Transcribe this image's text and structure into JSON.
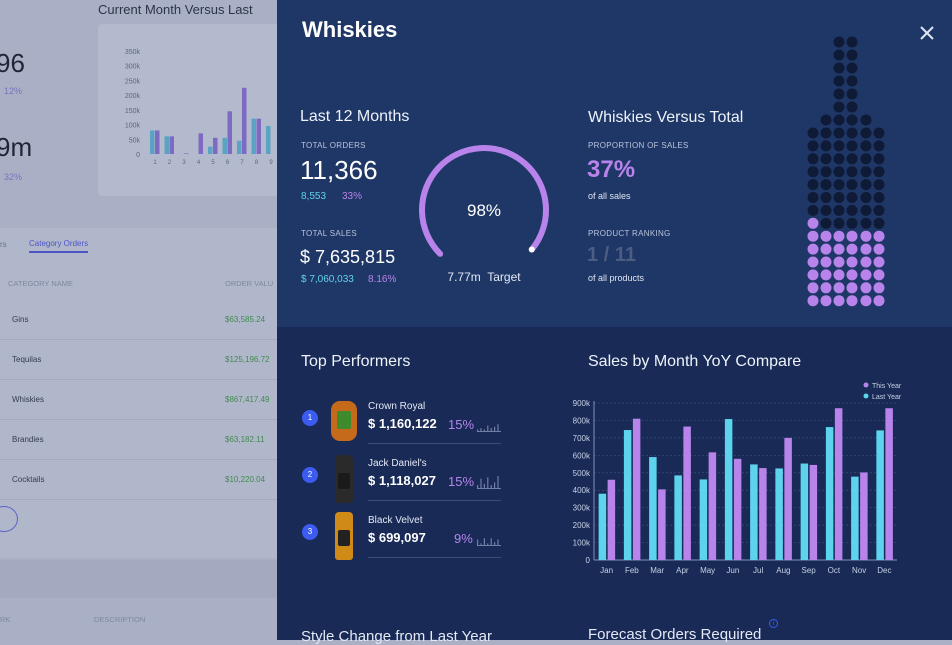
{
  "background": {
    "chart_title": "Current Month Versus Last",
    "kpi1_value": "96",
    "kpi1_change": "12%",
    "kpi2_value": "9m",
    "kpi2_change": "32%",
    "mini_chart": {
      "type": "bar",
      "categories": [
        "1",
        "2",
        "3",
        "4",
        "5",
        "6",
        "7",
        "8",
        "9"
      ],
      "y_ticks": [
        "350k",
        "300k",
        "250k",
        "200k",
        "150k",
        "100k",
        "50k",
        "0"
      ],
      "ymax": 350,
      "series": [
        {
          "values": [
            80,
            60,
            0,
            0,
            25,
            55,
            45,
            120,
            95
          ]
        },
        {
          "values": [
            80,
            60,
            2,
            70,
            55,
            145,
            225,
            120,
            null
          ]
        }
      ]
    },
    "tabs": [
      "rs",
      "Category Orders"
    ],
    "table": {
      "headers": [
        "CATEGORY NAME",
        "ORDER VALU"
      ],
      "rows": [
        [
          "Gins",
          "$63,585.24"
        ],
        [
          "Tequilas",
          "$125,196.72"
        ],
        [
          "Whiskies",
          "$867,417.49"
        ],
        [
          "Brandies",
          "$63,182.11"
        ],
        [
          "Cocktails",
          "$10,220.04"
        ]
      ]
    },
    "footer_headers": [
      "RK",
      "DESCRIPTION"
    ]
  },
  "panel": {
    "title": "Whiskies",
    "close_icon": "close-x",
    "last12": {
      "heading": "Last 12 Months",
      "orders_label": "Total Orders",
      "orders_value": "11,366",
      "orders_prev": "8,553",
      "orders_change": "33%",
      "sales_label": "Total Sales",
      "sales_value": "$ 7,635,815",
      "sales_prev": "$ 7,060,033",
      "sales_change": "8.16%",
      "gauge_value": "98%",
      "gauge_fraction": 0.98,
      "gauge_target": "7.77m  Target"
    },
    "versus": {
      "heading": "Whiskies Versus Total",
      "prop_label": "Proportion of Sales",
      "prop_value": "37%",
      "prop_sub": "of all sales",
      "rank_label": "Product Ranking",
      "rank_value": "1 / 11",
      "rank_sub": "of all products",
      "bottle_filled_percent": 37
    },
    "top_performers": {
      "heading": "Top Performers",
      "items": [
        {
          "rank": "1",
          "name": "Crown Royal",
          "value": "$ 1,160,122",
          "pct": "15%",
          "spark": [
            2,
            3,
            2,
            5,
            3,
            4,
            6
          ]
        },
        {
          "rank": "2",
          "name": "Jack Daniel's",
          "value": "$ 1,118,027",
          "pct": "15%",
          "spark": [
            3,
            8,
            4,
            9,
            3,
            5,
            10
          ]
        },
        {
          "rank": "3",
          "name": "Black Velvet",
          "value": "$ 699,097",
          "pct": "9%",
          "spark": [
            5,
            2,
            6,
            2,
            6,
            3,
            5
          ]
        }
      ]
    },
    "colors": {
      "this_year": "#b884ec",
      "last_year": "#5ed3ee",
      "panel_top": "#1f3766",
      "panel_bottom": "#182a55"
    },
    "chart_data": {
      "type": "bar",
      "title": "Sales by Month YoY Compare",
      "categories": [
        "Jan",
        "Feb",
        "Mar",
        "Apr",
        "May",
        "Jun",
        "Jul",
        "Aug",
        "Sep",
        "Oct",
        "Nov",
        "Dec"
      ],
      "y_ticks": [
        "0",
        "100k",
        "200k",
        "300k",
        "400k",
        "500k",
        "600k",
        "700k",
        "800k",
        "900k"
      ],
      "ylim": [
        0,
        900
      ],
      "unit": "k",
      "legend": "top-right",
      "grid": true,
      "series": [
        {
          "name": "Last Year",
          "values": [
            380,
            745,
            590,
            485,
            462,
            808,
            548,
            525,
            553,
            762,
            478,
            743
          ]
        },
        {
          "name": "This Year",
          "values": [
            460,
            810,
            405,
            765,
            617,
            580,
            527,
            700,
            545,
            870,
            502,
            870
          ]
        }
      ]
    },
    "bottom_headings": [
      "Style Change from Last Year",
      "Forecast Orders Required"
    ]
  }
}
